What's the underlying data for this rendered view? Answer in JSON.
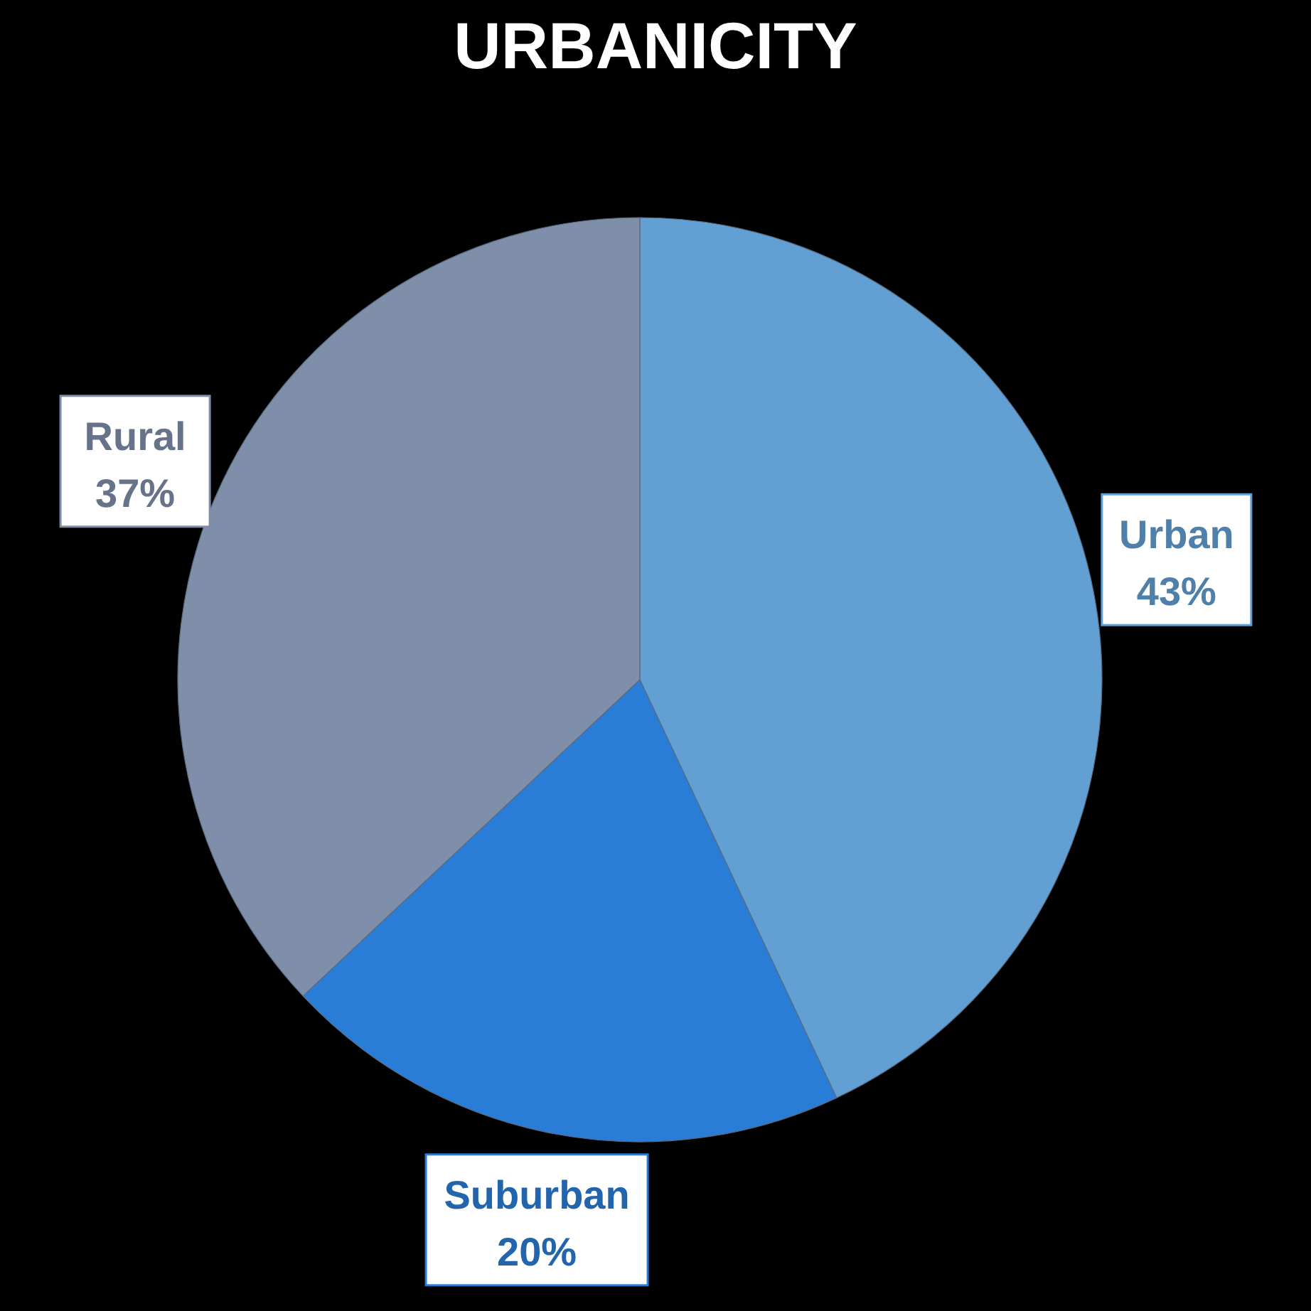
{
  "chart_data": {
    "type": "pie",
    "title": "URBANICITY",
    "categories": [
      "Urban",
      "Suburban",
      "Rural"
    ],
    "values": [
      43,
      20,
      37
    ],
    "value_labels": [
      "43%",
      "20%",
      "37%"
    ],
    "colors": [
      "#629fd3",
      "#2a7dd6",
      "#7f8faa"
    ]
  }
}
